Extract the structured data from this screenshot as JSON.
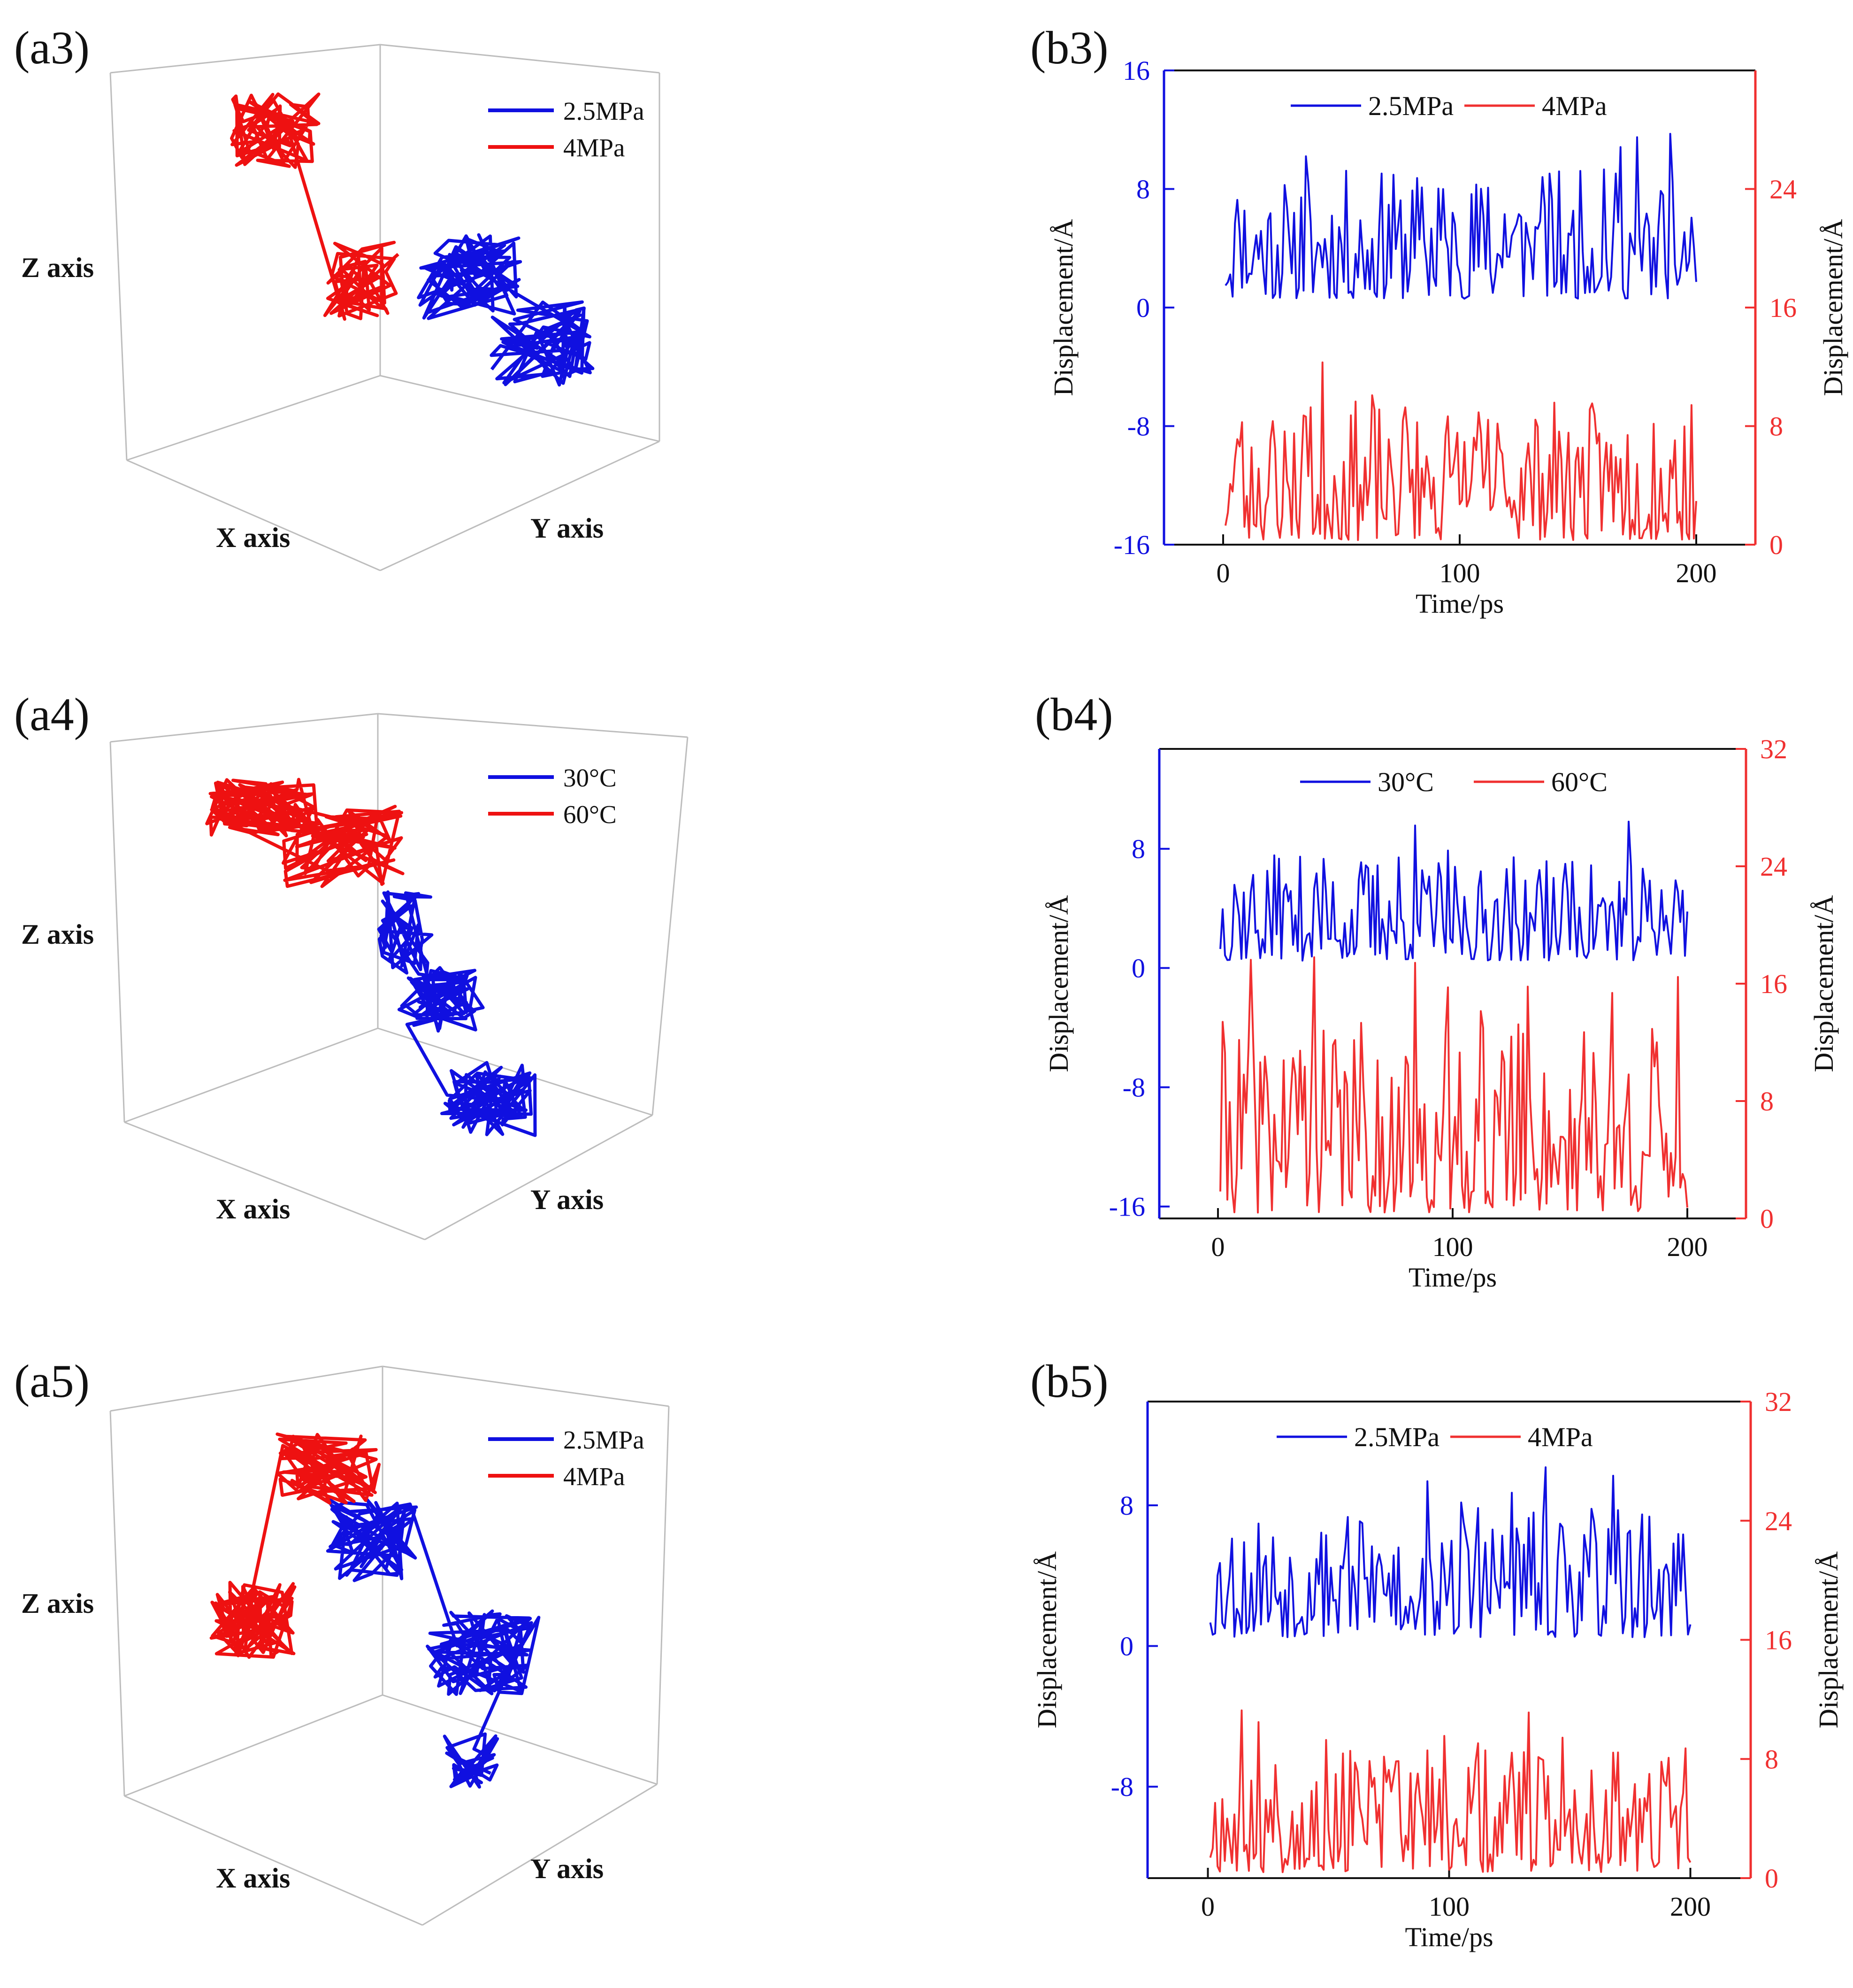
{
  "colors": {
    "blue": "#1010e0",
    "red": "#f03030",
    "red3d": "#ee1111",
    "box": "#bdbdbd",
    "black": "#111111"
  },
  "panels3d": [
    {
      "label": "(a3)",
      "xlabel": "X axis",
      "ylabel": "Y axis",
      "zlabel": "Z axis",
      "legend": [
        "2.5MPa",
        "4MPa"
      ]
    },
    {
      "label": "(a4)",
      "xlabel": "X axis",
      "ylabel": "Y axis",
      "zlabel": "Z axis",
      "legend": [
        "30°C",
        "60°C"
      ]
    },
    {
      "label": "(a5)",
      "xlabel": "X axis",
      "ylabel": "Y axis",
      "zlabel": "Z axis",
      "legend": [
        "2.5MPa",
        "4MPa"
      ]
    }
  ],
  "chart_data": [
    {
      "type": "trajectory-3d",
      "title": "(a3)",
      "series": [
        {
          "name": "2.5MPa",
          "color": "blue",
          "cluster": "right-middle"
        },
        {
          "name": "4MPa",
          "color": "red",
          "cluster": "upper-left to center"
        }
      ]
    },
    {
      "type": "trajectory-3d",
      "title": "(a4)",
      "series": [
        {
          "name": "30°C",
          "color": "blue",
          "cluster": "center to lower-right"
        },
        {
          "name": "60°C",
          "color": "red",
          "cluster": "upper-left"
        }
      ]
    },
    {
      "type": "trajectory-3d",
      "title": "(a5)",
      "series": [
        {
          "name": "2.5MPa",
          "color": "blue",
          "cluster": "center-right"
        },
        {
          "name": "4MPa",
          "color": "red",
          "cluster": "left"
        }
      ]
    },
    {
      "type": "line",
      "title": "(b3)",
      "xlabel": "Time/ps",
      "ylabel_left": "Displacement/Å",
      "ylabel_right": "Displacement/Å",
      "xlim": [
        -25,
        225
      ],
      "xticks": [
        0,
        100,
        200
      ],
      "ylim_left": [
        -16,
        16
      ],
      "yticks_left": [
        -16,
        -8,
        0,
        8,
        16
      ],
      "ylim_right": [
        0,
        32
      ],
      "yticks_right": [
        0,
        8,
        16,
        24
      ],
      "legend": [
        "2.5MPa",
        "4MPa"
      ],
      "series": [
        {
          "name": "2.5MPa",
          "axis": "left",
          "color": "blue",
          "x_range": [
            1,
            200
          ],
          "mean": 4.2,
          "min": 0.6,
          "max": 12.2,
          "seed": 11
        },
        {
          "name": "4MPa",
          "axis": "right",
          "color": "red",
          "x_range": [
            1,
            200
          ],
          "mean": 5.0,
          "min": 0.3,
          "max": 12.8,
          "seed": 23
        }
      ]
    },
    {
      "type": "line",
      "title": "(b4)",
      "xlabel": "Time/ps",
      "ylabel_left": "Displacement/Å",
      "ylabel_right": "Displacement/Å",
      "xlim": [
        -25,
        225
      ],
      "xticks": [
        0,
        100,
        200
      ],
      "ylim_left": [
        -16.8,
        14.7
      ],
      "yticks_left": [
        -16,
        -8,
        0,
        8
      ],
      "ylim_right": [
        0,
        32
      ],
      "yticks_right": [
        0,
        8,
        16,
        24,
        32
      ],
      "legend": [
        "30°C",
        "60°C"
      ],
      "series": [
        {
          "name": "30°C",
          "axis": "left",
          "color": "blue",
          "x_range": [
            1,
            200
          ],
          "mean": 3.4,
          "min": 0.5,
          "max": 10.0,
          "seed": 37
        },
        {
          "name": "60°C",
          "axis": "right",
          "color": "red",
          "x_range": [
            1,
            200
          ],
          "mean": 4.0,
          "min": 0.4,
          "max": 17.8,
          "seed": 41,
          "spikes": [
            [
              41,
              17.8
            ],
            [
              132,
              15.8
            ]
          ]
        }
      ]
    },
    {
      "type": "line",
      "title": "(b5)",
      "xlabel": "Time/ps",
      "ylabel_left": "Displacement/Å",
      "ylabel_right": "Displacement/Å",
      "xlim": [
        -25,
        225
      ],
      "xticks": [
        0,
        100,
        200
      ],
      "ylim_left": [
        -13.2,
        13.9
      ],
      "yticks_left": [
        -8,
        0,
        8
      ],
      "ylim_right": [
        0,
        32
      ],
      "yticks_right": [
        0,
        8,
        16,
        24,
        32
      ],
      "legend": [
        "2.5MPa",
        "4MPa"
      ],
      "series": [
        {
          "name": "2.5MPa",
          "axis": "left",
          "color": "blue",
          "x_range": [
            1,
            200
          ],
          "mean": 3.6,
          "min": 0.5,
          "max": 10.3,
          "seed": 53
        },
        {
          "name": "4MPa",
          "axis": "right",
          "color": "red",
          "x_range": [
            1,
            200
          ],
          "mean": 3.8,
          "min": 0.4,
          "max": 11.5,
          "seed": 67
        }
      ]
    }
  ]
}
